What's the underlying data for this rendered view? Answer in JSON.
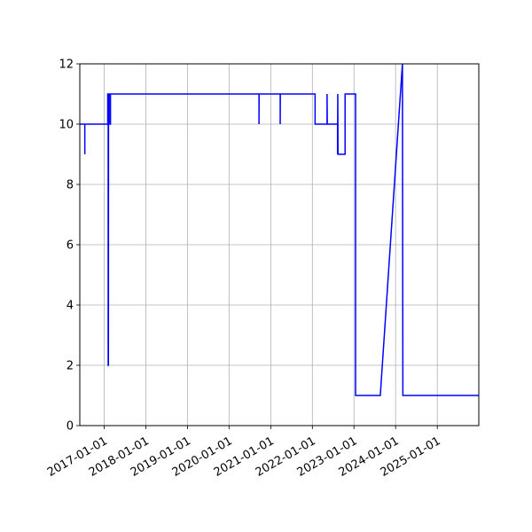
{
  "chart_data": {
    "type": "line",
    "title": "",
    "xlabel": "",
    "ylabel": "",
    "x_axis_type": "date",
    "xlim": [
      "2016-06-01",
      "2025-12-31"
    ],
    "ylim": [
      0,
      12
    ],
    "grid": true,
    "legend": "none",
    "x_ticks": [
      "2017-01-01",
      "2018-01-01",
      "2019-01-01",
      "2020-01-01",
      "2021-01-01",
      "2022-01-01",
      "2023-01-01",
      "2024-01-01",
      "2025-01-01"
    ],
    "y_ticks": [
      0,
      2,
      4,
      6,
      8,
      10,
      12
    ],
    "series": [
      {
        "color": "#0000ff",
        "points": [
          [
            "2016-06-01",
            10
          ],
          [
            "2016-07-15",
            10
          ],
          [
            "2016-07-15",
            9
          ],
          [
            "2016-07-15",
            10
          ],
          [
            "2017-02-01",
            10
          ],
          [
            "2017-02-01",
            11
          ],
          [
            "2017-02-05",
            11
          ],
          [
            "2017-02-05",
            2
          ],
          [
            "2017-02-07",
            2
          ],
          [
            "2017-02-08",
            11
          ],
          [
            "2017-02-20",
            11
          ],
          [
            "2017-02-20",
            10
          ],
          [
            "2017-02-25",
            10
          ],
          [
            "2017-02-25",
            11
          ],
          [
            "2020-09-20",
            11
          ],
          [
            "2020-09-20",
            10
          ],
          [
            "2020-09-21",
            11
          ],
          [
            "2021-03-25",
            11
          ],
          [
            "2021-03-25",
            10
          ],
          [
            "2021-03-26",
            11
          ],
          [
            "2022-01-25",
            11
          ],
          [
            "2022-01-25",
            10
          ],
          [
            "2022-05-10",
            10
          ],
          [
            "2022-05-10",
            11
          ],
          [
            "2022-05-12",
            10
          ],
          [
            "2022-08-10",
            10
          ],
          [
            "2022-08-10",
            9
          ],
          [
            "2022-08-12",
            11
          ],
          [
            "2022-08-14",
            9
          ],
          [
            "2022-10-15",
            9
          ],
          [
            "2022-10-15",
            11
          ],
          [
            "2023-01-15",
            11
          ],
          [
            "2023-01-15",
            1
          ],
          [
            "2023-08-20",
            1
          ],
          [
            "2024-03-01",
            12
          ],
          [
            "2024-03-05",
            1
          ],
          [
            "2025-12-31",
            1
          ]
        ]
      }
    ]
  }
}
